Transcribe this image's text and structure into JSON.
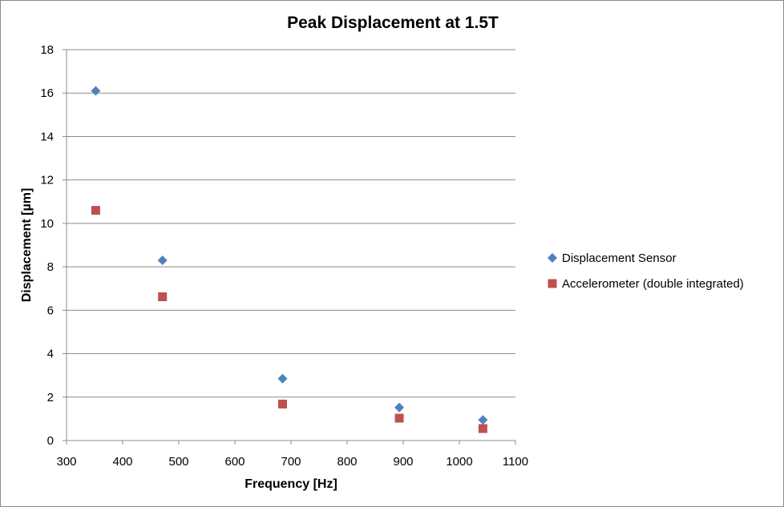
{
  "chart_data": {
    "type": "scatter",
    "title": "Peak Displacement at 1.5T",
    "xlabel": "Frequency [Hz]",
    "ylabel": "Displacement  [µm]",
    "xlim": [
      300,
      1100
    ],
    "ylim": [
      0,
      18
    ],
    "x_ticks": [
      300,
      400,
      500,
      600,
      700,
      800,
      900,
      1000,
      1100
    ],
    "y_ticks": [
      0,
      2,
      4,
      6,
      8,
      10,
      12,
      14,
      16,
      18
    ],
    "grid": "horizontal",
    "legend_position": "right",
    "series": [
      {
        "name": "Displacement Sensor",
        "marker": "diamond",
        "color": "#4f81bd",
        "points": [
          {
            "x": 352,
            "y": 16.1
          },
          {
            "x": 471,
            "y": 8.3
          },
          {
            "x": 685,
            "y": 2.85
          },
          {
            "x": 893,
            "y": 1.52
          },
          {
            "x": 1042,
            "y": 0.95
          }
        ]
      },
      {
        "name": "Accelerometer (double integrated)",
        "marker": "square",
        "color": "#c0504d",
        "points": [
          {
            "x": 352,
            "y": 10.6
          },
          {
            "x": 471,
            "y": 6.62
          },
          {
            "x": 685,
            "y": 1.68
          },
          {
            "x": 893,
            "y": 1.03
          },
          {
            "x": 1042,
            "y": 0.55
          }
        ]
      }
    ]
  }
}
